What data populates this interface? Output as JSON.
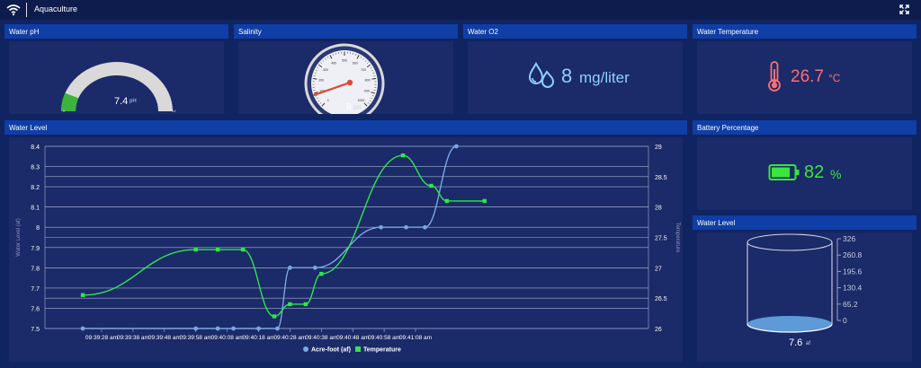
{
  "app": {
    "title": "Aquaculture"
  },
  "panels": {
    "ph": {
      "title": "Water pH",
      "value": "7.4",
      "unit": "pH",
      "min": "0",
      "max": "14",
      "fraction": 0.53
    },
    "salinity": {
      "title": "Salinity",
      "value": "8",
      "unit": "ppt",
      "ticks": [
        "0",
        "100",
        "200",
        "300",
        "400",
        "500",
        "600",
        "700",
        "800",
        "900",
        "1000"
      ],
      "fraction": 0.008
    },
    "o2": {
      "title": "Water O2",
      "value": "8",
      "unit": "mg/liter"
    },
    "temperature": {
      "title": "Water Temperature",
      "value": "26.7",
      "unit": "°C"
    },
    "battery": {
      "title": "Battery Percentage",
      "value": "82",
      "unit": "%",
      "level": 82
    },
    "tank": {
      "title": "Water Level",
      "value": "7.6",
      "unit": "af",
      "scale": [
        "326",
        "260.8",
        "195.6",
        "130.4",
        "65.2",
        "0"
      ]
    }
  },
  "chart_title": "Water Level",
  "chart_data": {
    "type": "line",
    "x": [
      "09:39:28 am",
      "09:39:38 am",
      "09:39:48 am",
      "09:39:58 am",
      "09:40:08 am",
      "09:40:18 am",
      "09:40:28 am",
      "09:40:38 am",
      "09:40:48 am",
      "09:40:58 am",
      "09:41:08 am"
    ],
    "series": [
      {
        "name": "Acre-foot (af)",
        "axis": "left",
        "color": "#7aa7e2",
        "points": [
          [
            -0.6,
            7.5
          ],
          [
            3.0,
            7.5
          ],
          [
            3.7,
            7.5
          ],
          [
            4.2,
            7.5
          ],
          [
            5.0,
            7.5
          ],
          [
            5.6,
            7.5
          ],
          [
            6.0,
            7.8
          ],
          [
            6.8,
            7.8
          ],
          [
            8.9,
            8.0
          ],
          [
            9.7,
            8.0
          ],
          [
            10.3,
            8.0
          ],
          [
            11.3,
            8.4
          ]
        ]
      },
      {
        "name": "Temperature",
        "axis": "right",
        "color": "#2ee64b",
        "points": [
          [
            -0.6,
            26.55
          ],
          [
            3.0,
            27.3
          ],
          [
            3.7,
            27.3
          ],
          [
            4.5,
            27.3
          ],
          [
            5.5,
            26.2
          ],
          [
            6.0,
            26.4
          ],
          [
            6.5,
            26.4
          ],
          [
            7.0,
            26.9
          ],
          [
            9.6,
            28.85
          ],
          [
            10.5,
            28.35
          ],
          [
            11.0,
            28.1
          ],
          [
            12.2,
            28.1
          ]
        ]
      }
    ],
    "ylabel": "Water Level (af)",
    "ylabel_right": "Temperature",
    "yticks_left": [
      "8.4",
      "8.3",
      "8.2",
      "8.1",
      "8",
      "7.9",
      "7.8",
      "7.7",
      "7.6",
      "7.5"
    ],
    "yticks_right": [
      "29",
      "28.5",
      "28",
      "27.5",
      "27",
      "26.5",
      "26"
    ],
    "ylim": [
      7.5,
      8.4
    ],
    "ylim_right": [
      26,
      29
    ],
    "grid": true,
    "legend": "bottom"
  },
  "icons": {
    "wifi": "wifi-icon",
    "fullscreen": "fullscreen-icon",
    "water": "water-drops-icon",
    "thermo": "thermometer-icon",
    "battery": "battery-icon"
  },
  "colors": {
    "header": "#0f3ea6",
    "panel": "#1b2a68",
    "page": "#102461",
    "o2": "#8fd0ff",
    "temp": "#ff6f73",
    "battery": "#39e639",
    "level": "#7aa7e2"
  }
}
